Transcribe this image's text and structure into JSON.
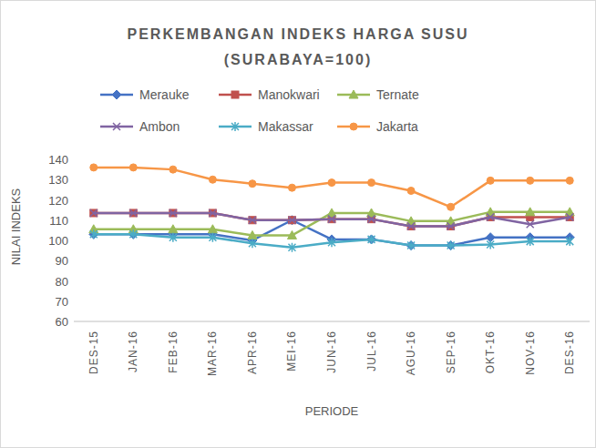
{
  "chart_data": {
    "type": "line",
    "title": "PERKEMBANGAN INDEKS HARGA SUSU",
    "subtitle": "(SURABAYA=100)",
    "x_label": "PERIODE",
    "y_label": "NILAI INDEKS",
    "categories": [
      "DES-15",
      "JAN-16",
      "FEB-16",
      "MAR-16",
      "APR-16",
      "MEI-16",
      "JUN-16",
      "JUL-16",
      "AGU-16",
      "SEP-16",
      "OKT-16",
      "NOV-16",
      "DES-16"
    ],
    "ylim": [
      60,
      140
    ],
    "yticks": [
      60,
      70,
      80,
      90,
      100,
      110,
      120,
      130,
      140
    ],
    "grid": false,
    "legend": "top",
    "series": [
      {
        "name": "Merauke",
        "color": "#4472c4",
        "marker": "diamond",
        "values": [
          103,
          103,
          103,
          103,
          100,
          110,
          100.5,
          100.5,
          97.5,
          97.5,
          101.5,
          101.5,
          101.5
        ]
      },
      {
        "name": "Manokwari",
        "color": "#c0504d",
        "marker": "square",
        "values": [
          113.5,
          113.5,
          113.5,
          113.5,
          110,
          110,
          110.5,
          110.5,
          107,
          107,
          111.5,
          111.5,
          111.5
        ]
      },
      {
        "name": "Ternate",
        "color": "#9bbb59",
        "marker": "triangle",
        "values": [
          105.5,
          105.5,
          105.5,
          105.5,
          102.5,
          102.5,
          113.5,
          113.5,
          109.5,
          109.5,
          114,
          114,
          114
        ]
      },
      {
        "name": "Ambon",
        "color": "#8064a2",
        "marker": "x",
        "values": [
          113.5,
          113.5,
          113.5,
          113.5,
          110,
          110,
          110.5,
          110.5,
          107,
          107,
          111.5,
          108,
          111.5
        ]
      },
      {
        "name": "Makassar",
        "color": "#4bacc6",
        "marker": "star",
        "values": [
          103,
          103,
          101.5,
          101.5,
          98.5,
          96.5,
          99,
          100.5,
          97.5,
          97.5,
          98,
          99.5,
          99.5
        ]
      },
      {
        "name": "Jakarta",
        "color": "#f79646",
        "marker": "circle",
        "values": [
          136,
          136,
          135,
          130,
          128,
          126,
          128.5,
          128.5,
          124.5,
          116.5,
          129.5,
          129.5,
          129.5
        ]
      }
    ]
  }
}
